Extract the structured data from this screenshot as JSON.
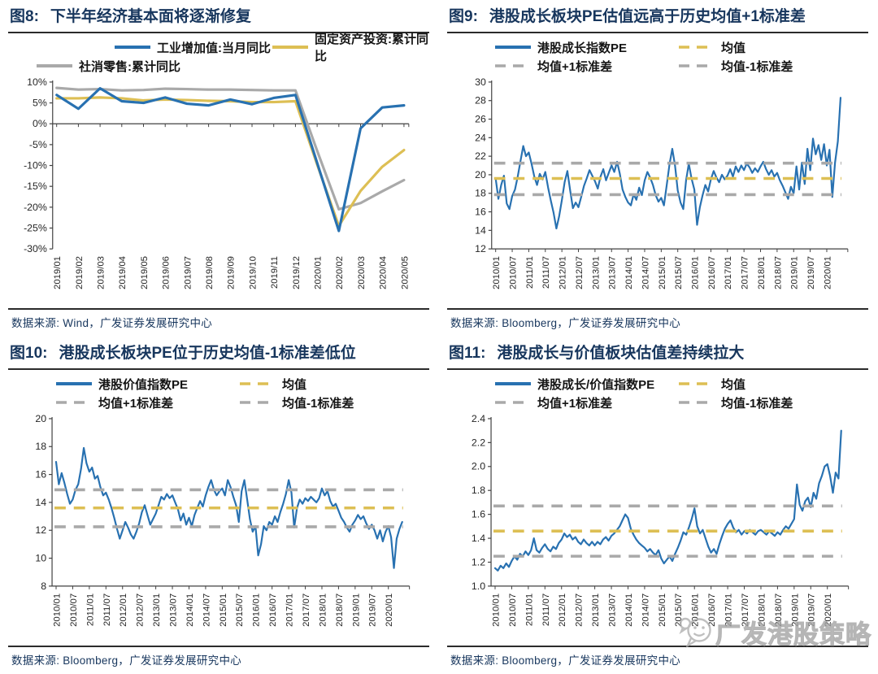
{
  "colors": {
    "navy": "#17365d",
    "blue": "#2871b1",
    "yellow": "#ddbf54",
    "gray": "#a9a9a9",
    "axis": "#404040",
    "tick_text": "#262626",
    "watermark": "#b3b3b3"
  },
  "watermark": {
    "text": "广发港股策略",
    "icon": "chat-bubble-face-icon"
  },
  "chart_data": [
    {
      "type": "line",
      "fig_label": "图8:",
      "title": "下半年经济基本面将逐渐修复",
      "source_line": "数据来源: Wind，广发证券发展研究中心",
      "ylim": [
        -30,
        10
      ],
      "ystep": 5,
      "y_suffix": "%",
      "y_decimals": 0,
      "axis_at_zero": true,
      "x_label_step": 1,
      "x_labels": [
        "2019/01",
        "2019/02",
        "2019/03",
        "2019/04",
        "2019/05",
        "2019/06",
        "2019/07",
        "2019/08",
        "2019/09",
        "2019/10",
        "2019/11",
        "2019/12",
        "2020/01",
        "2020/02",
        "2020/03",
        "2020/04",
        "2020/05"
      ],
      "legend_rows": [
        [
          {
            "label": "工业增加值:当月同比",
            "color": "blue"
          },
          {
            "label": "固定资产投资:累计同比",
            "color": "yellow"
          }
        ],
        [
          {
            "label": "社消零售:累计同比",
            "color": "gray"
          }
        ]
      ],
      "series": [
        {
          "name": "社消零售:累计同比",
          "color": "gray",
          "values": [
            8.6,
            8.2,
            8.3,
            8.0,
            8.1,
            8.4,
            8.3,
            8.2,
            8.2,
            8.1,
            8.0,
            8.0,
            -6.5,
            -20.5,
            -19.0,
            -16.2,
            -13.5
          ]
        },
        {
          "name": "固定资产投资:累计同比",
          "color": "yellow",
          "values": [
            6.1,
            6.1,
            6.3,
            6.1,
            5.6,
            5.8,
            5.7,
            5.5,
            5.4,
            5.2,
            5.2,
            5.4,
            -9.8,
            -24.5,
            -16.1,
            -10.3,
            -6.3
          ]
        },
        {
          "name": "工业增加值:当月同比",
          "color": "blue",
          "values": [
            6.9,
            3.6,
            8.5,
            5.4,
            5.0,
            6.3,
            4.8,
            4.4,
            5.8,
            4.7,
            6.2,
            6.9,
            -9.4,
            -25.7,
            -1.1,
            3.9,
            4.4
          ]
        }
      ],
      "hlines": []
    },
    {
      "type": "line",
      "fig_label": "图9:",
      "title": "港股成长板块PE估值远高于历史均值+1标准差",
      "source_line": "数据来源: Bloomberg，广发证券发展研究中心",
      "ylim": [
        12,
        30
      ],
      "ystep": 2,
      "y_suffix": "",
      "y_decimals": 0,
      "axis_at_zero": false,
      "x_label_step": 6,
      "x_labels": [
        "2010/01",
        "2010/07",
        "2011/01",
        "2011/07",
        "2012/01",
        "2012/07",
        "2013/01",
        "2013/07",
        "2014/01",
        "2014/07",
        "2015/01",
        "2015/07",
        "2016/01",
        "2016/07",
        "2017/01",
        "2017/07",
        "2018/01",
        "2018/07",
        "2019/01",
        "2019/07",
        "2020/01"
      ],
      "legend_rows": [
        [
          {
            "label": "港股成长指数PE",
            "color": "blue"
          },
          {
            "label": "均值",
            "color": "yellow",
            "dash": true
          }
        ],
        [
          {
            "label": "均值+1标准差",
            "color": "gray",
            "dash": true
          },
          {
            "label": "均值-1标准差",
            "color": "gray",
            "dash": true
          }
        ]
      ],
      "series": [
        {
          "name": "港股成长指数PE",
          "color": "blue",
          "values": [
            19.6,
            17.4,
            18.9,
            19.9,
            16.9,
            16.3,
            17.7,
            18.4,
            19.8,
            21.5,
            23.1,
            22.0,
            22.4,
            21.2,
            19.8,
            18.9,
            20.1,
            19.5,
            20.3,
            18.6,
            17.2,
            15.9,
            14.2,
            15.5,
            17.3,
            19.2,
            20.4,
            18.3,
            16.4,
            17.0,
            16.5,
            17.6,
            18.8,
            19.6,
            20.5,
            19.9,
            19.3,
            18.5,
            19.8,
            20.6,
            19.4,
            20.2,
            21.0,
            20.3,
            21.4,
            20.1,
            18.4,
            17.6,
            17.0,
            16.7,
            17.9,
            17.3,
            18.6,
            17.8,
            19.4,
            20.3,
            19.7,
            18.9,
            17.8,
            17.1,
            17.5,
            16.7,
            18.9,
            21.1,
            22.8,
            21.0,
            18.3,
            17.0,
            16.3,
            19.4,
            21.2,
            19.6,
            18.4,
            14.6,
            16.5,
            17.8,
            18.9,
            18.2,
            19.5,
            20.4,
            19.7,
            19.2,
            20.0,
            19.5,
            19.9,
            20.6,
            19.8,
            20.9,
            20.3,
            21.0,
            20.5,
            21.2,
            20.8,
            20.2,
            20.7,
            20.3,
            20.9,
            21.4,
            20.6,
            20.0,
            20.5,
            19.8,
            20.2,
            19.4,
            18.8,
            18.1,
            17.4,
            18.7,
            18.0,
            20.9,
            18.4,
            21.3,
            19.0,
            22.8,
            20.5,
            23.9,
            22.2,
            23.2,
            21.6,
            23.3,
            21.0,
            22.7,
            17.6,
            21.3,
            23.6,
            28.3
          ]
        }
      ],
      "hlines": [
        {
          "name": "均值+1标准差",
          "value": 21.25,
          "color": "gray"
        },
        {
          "name": "均值-1标准差",
          "value": 17.85,
          "color": "gray"
        },
        {
          "name": "均值",
          "value": 19.6,
          "color": "yellow"
        }
      ]
    },
    {
      "type": "line",
      "fig_label": "图10:",
      "title": "港股成长板块PE位于历史均值-1标准差低位",
      "source_line": "数据来源: Bloomberg，广发证券发展研究中心",
      "ylim": [
        8,
        20
      ],
      "ystep": 2,
      "y_suffix": "",
      "y_decimals": 0,
      "axis_at_zero": false,
      "x_label_step": 6,
      "x_labels": [
        "2010/01",
        "2010/07",
        "2011/01",
        "2011/07",
        "2012/01",
        "2012/07",
        "2013/01",
        "2013/07",
        "2014/01",
        "2014/07",
        "2015/01",
        "2015/07",
        "2016/01",
        "2016/07",
        "2017/01",
        "2017/07",
        "2018/01",
        "2018/07",
        "2019/01",
        "2019/07",
        "2020/01"
      ],
      "legend_rows": [
        [
          {
            "label": "港股价值指数PE",
            "color": "blue"
          },
          {
            "label": "均值",
            "color": "yellow",
            "dash": true
          }
        ],
        [
          {
            "label": "均值+1标准差",
            "color": "gray",
            "dash": true
          },
          {
            "label": "均值-1标准差",
            "color": "gray",
            "dash": true
          }
        ]
      ],
      "series": [
        {
          "name": "港股价值指数PE",
          "color": "blue",
          "values": [
            16.9,
            15.3,
            16.1,
            15.4,
            14.6,
            13.9,
            14.2,
            14.9,
            15.3,
            16.4,
            17.9,
            16.8,
            16.2,
            16.5,
            15.7,
            15.9,
            15.1,
            14.5,
            14.7,
            14.2,
            13.6,
            12.9,
            12.1,
            11.4,
            12.0,
            12.6,
            12.2,
            11.7,
            11.4,
            11.9,
            12.5,
            13.3,
            13.8,
            13.1,
            12.4,
            12.8,
            13.2,
            13.8,
            14.4,
            14.2,
            14.6,
            14.3,
            14.5,
            14.0,
            13.5,
            12.7,
            13.2,
            12.4,
            12.9,
            12.3,
            13.1,
            13.6,
            14.1,
            13.7,
            14.5,
            15.1,
            15.6,
            14.9,
            14.5,
            14.8,
            15.0,
            14.5,
            15.6,
            15.1,
            14.4,
            13.8,
            12.6,
            14.8,
            15.6,
            14.2,
            12.8,
            11.9,
            12.3,
            10.2,
            11.0,
            12.3,
            12.0,
            12.6,
            12.4,
            13.0,
            12.6,
            13.3,
            13.9,
            14.6,
            15.6,
            14.7,
            12.2,
            13.6,
            14.2,
            13.9,
            14.3,
            14.1,
            14.4,
            14.2,
            14.0,
            14.3,
            15.0,
            14.5,
            14.8,
            14.1,
            13.7,
            13.9,
            13.4,
            12.9,
            12.6,
            12.2,
            11.9,
            12.4,
            12.7,
            13.1,
            12.8,
            13.0,
            12.5,
            12.1,
            12.4,
            12.0,
            11.4,
            12.0,
            11.2,
            11.9,
            12.3,
            11.5,
            9.3,
            11.4,
            12.1,
            12.6
          ]
        }
      ],
      "hlines": [
        {
          "name": "均值+1标准差",
          "value": 14.9,
          "color": "gray"
        },
        {
          "name": "均值-1标准差",
          "value": 12.25,
          "color": "gray"
        },
        {
          "name": "均值",
          "value": 13.6,
          "color": "yellow"
        }
      ]
    },
    {
      "type": "line",
      "fig_label": "图11:",
      "title": "港股成长与价值板块估值差持续拉大",
      "source_line": "数据来源: Bloomberg，广发证券发展研究中心",
      "ylim": [
        1.0,
        2.4
      ],
      "ystep": 0.2,
      "y_suffix": "",
      "y_decimals": 1,
      "axis_at_zero": false,
      "x_label_step": 6,
      "x_labels": [
        "2010/01",
        "2010/07",
        "2011/01",
        "2011/07",
        "2012/01",
        "2012/07",
        "2013/01",
        "2013/07",
        "2014/01",
        "2014/07",
        "2015/01",
        "2015/07",
        "2016/01",
        "2016/07",
        "2017/01",
        "2017/07",
        "2018/01",
        "2018/07",
        "2019/01",
        "2019/07",
        "2020/01"
      ],
      "legend_rows": [
        [
          {
            "label": "港股成长/价值指数PE",
            "color": "blue"
          },
          {
            "label": "均值",
            "color": "yellow",
            "dash": true
          }
        ],
        [
          {
            "label": "均值+1标准差",
            "color": "gray",
            "dash": true
          },
          {
            "label": "均值-1标准差",
            "color": "gray",
            "dash": true
          }
        ]
      ],
      "series": [
        {
          "name": "港股成长/价值指数PE",
          "color": "blue",
          "values": [
            1.15,
            1.13,
            1.17,
            1.15,
            1.19,
            1.16,
            1.21,
            1.25,
            1.22,
            1.27,
            1.25,
            1.29,
            1.26,
            1.3,
            1.4,
            1.3,
            1.28,
            1.32,
            1.35,
            1.31,
            1.29,
            1.33,
            1.31,
            1.36,
            1.39,
            1.44,
            1.41,
            1.43,
            1.39,
            1.41,
            1.37,
            1.35,
            1.39,
            1.36,
            1.34,
            1.37,
            1.34,
            1.37,
            1.35,
            1.39,
            1.41,
            1.38,
            1.42,
            1.44,
            1.47,
            1.5,
            1.55,
            1.6,
            1.57,
            1.48,
            1.43,
            1.39,
            1.36,
            1.34,
            1.32,
            1.29,
            1.31,
            1.28,
            1.26,
            1.3,
            1.23,
            1.19,
            1.22,
            1.25,
            1.21,
            1.27,
            1.32,
            1.38,
            1.45,
            1.43,
            1.49,
            1.56,
            1.65,
            1.5,
            1.44,
            1.47,
            1.4,
            1.33,
            1.28,
            1.31,
            1.27,
            1.35,
            1.42,
            1.48,
            1.52,
            1.55,
            1.49,
            1.45,
            1.47,
            1.43,
            1.46,
            1.44,
            1.47,
            1.45,
            1.43,
            1.46,
            1.47,
            1.45,
            1.43,
            1.46,
            1.44,
            1.42,
            1.45,
            1.43,
            1.47,
            1.5,
            1.48,
            1.52,
            1.56,
            1.85,
            1.68,
            1.63,
            1.71,
            1.74,
            1.66,
            1.78,
            1.73,
            1.86,
            1.92,
            2.0,
            2.02,
            1.92,
            1.78,
            1.95,
            1.9,
            2.3
          ]
        }
      ],
      "hlines": [
        {
          "name": "均值+1标准差",
          "value": 1.67,
          "color": "gray"
        },
        {
          "name": "均值-1标准差",
          "value": 1.25,
          "color": "gray"
        },
        {
          "name": "均值",
          "value": 1.46,
          "color": "yellow"
        }
      ]
    }
  ]
}
